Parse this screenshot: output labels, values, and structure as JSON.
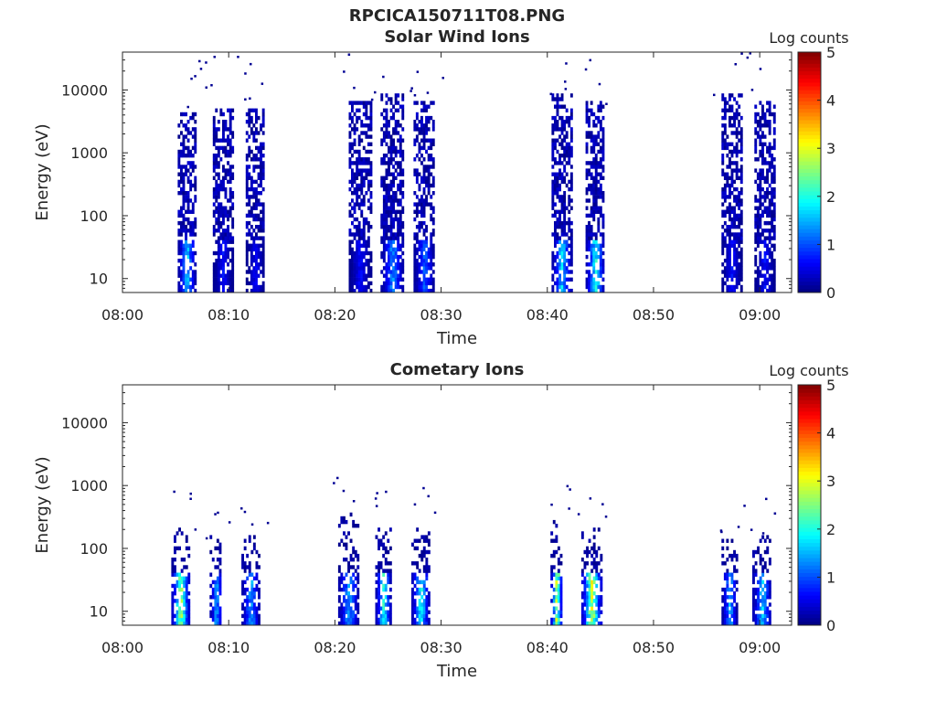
{
  "figure_title": "RPCICA150711T08.PNG",
  "colors": {
    "axis": "#262626",
    "colormap": [
      "#00007f",
      "#0000ff",
      "#007fff",
      "#00ffff",
      "#7fff7f",
      "#ffff00",
      "#ff7f00",
      "#ff0000",
      "#7f0000"
    ]
  },
  "chart_data": [
    {
      "type": "heatmap",
      "title": "Solar Wind Ions",
      "xlabel": "Time",
      "ylabel": "Energy (eV)",
      "colorbar_label": "Log counts",
      "x_ticks": [
        "08:00",
        "08:10",
        "08:20",
        "08:30",
        "08:40",
        "08:50",
        "09:00"
      ],
      "xlim_minutes": [
        0,
        63
      ],
      "y_ticks": [
        "10",
        "100",
        "1000",
        "10000"
      ],
      "y_scale": "log",
      "ylim": [
        6,
        40000
      ],
      "colorbar_ticks": [
        "0",
        "1",
        "2",
        "3",
        "4",
        "5"
      ],
      "clim": [
        0,
        5
      ],
      "clusters": [
        {
          "t_start": 5.2,
          "t_end": 6.8,
          "e_max": 4000,
          "peak": 2.0
        },
        {
          "t_start": 8.5,
          "t_end": 10.3,
          "e_max": 5000,
          "peak": 0.8
        },
        {
          "t_start": 11.6,
          "t_end": 13.3,
          "e_max": 5000,
          "peak": 0.7
        },
        {
          "t_start": 21.3,
          "t_end": 23.3,
          "e_max": 6000,
          "peak": 0.8
        },
        {
          "t_start": 24.3,
          "t_end": 26.4,
          "e_max": 8000,
          "peak": 1.6
        },
        {
          "t_start": 27.4,
          "t_end": 29.3,
          "e_max": 6000,
          "peak": 1.3
        },
        {
          "t_start": 40.4,
          "t_end": 42.2,
          "e_max": 8000,
          "peak": 2.0
        },
        {
          "t_start": 43.6,
          "t_end": 45.3,
          "e_max": 6000,
          "peak": 2.4
        },
        {
          "t_start": 56.4,
          "t_end": 58.2,
          "e_max": 8000,
          "peak": 0.8
        },
        {
          "t_start": 59.5,
          "t_end": 61.3,
          "e_max": 6000,
          "peak": 0.8
        }
      ]
    },
    {
      "type": "heatmap",
      "title": "Cometary Ions",
      "xlabel": "Time",
      "ylabel": "Energy (eV)",
      "colorbar_label": "Log counts",
      "x_ticks": [
        "08:00",
        "08:10",
        "08:20",
        "08:30",
        "08:40",
        "08:50",
        "09:00"
      ],
      "xlim_minutes": [
        0,
        63
      ],
      "y_ticks": [
        "10",
        "100",
        "1000",
        "10000"
      ],
      "y_scale": "log",
      "ylim": [
        6,
        40000
      ],
      "colorbar_ticks": [
        "0",
        "1",
        "2",
        "3",
        "4",
        "5"
      ],
      "clim": [
        0,
        5
      ],
      "clusters": [
        {
          "t_start": 4.6,
          "t_end": 6.2,
          "e_max": 200,
          "peak": 3.2
        },
        {
          "t_start": 8.2,
          "t_end": 9.3,
          "e_max": 150,
          "peak": 1.8
        },
        {
          "t_start": 11.2,
          "t_end": 12.8,
          "e_max": 150,
          "peak": 1.8
        },
        {
          "t_start": 20.3,
          "t_end": 22.2,
          "e_max": 350,
          "peak": 1.8
        },
        {
          "t_start": 23.8,
          "t_end": 25.2,
          "e_max": 200,
          "peak": 2.6
        },
        {
          "t_start": 27.2,
          "t_end": 28.8,
          "e_max": 200,
          "peak": 2.4
        },
        {
          "t_start": 40.3,
          "t_end": 41.3,
          "e_max": 250,
          "peak": 3.6
        },
        {
          "t_start": 43.2,
          "t_end": 45.0,
          "e_max": 200,
          "peak": 3.5
        },
        {
          "t_start": 56.4,
          "t_end": 57.8,
          "e_max": 150,
          "peak": 1.8
        },
        {
          "t_start": 59.3,
          "t_end": 61.0,
          "e_max": 150,
          "peak": 2.0
        }
      ]
    }
  ]
}
